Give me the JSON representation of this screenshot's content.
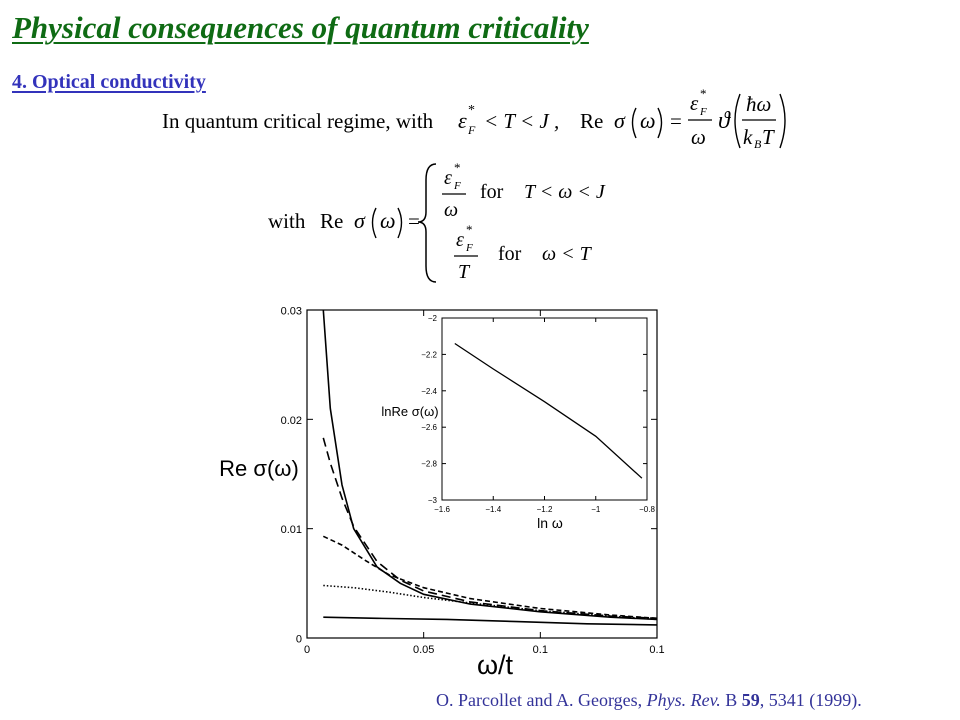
{
  "slide": {
    "title": "Physical consequences of quantum criticality",
    "section": "4. Optical conductivity"
  },
  "equations": {
    "eq1": {
      "lead_text": "In quantum critical regime, with",
      "condition_lhs": "ε",
      "condition_rest": "< T < J ,",
      "re_label": "Re",
      "sigma": "σ",
      "omega": "ω",
      "theta": "ϑ",
      "hbar_omega": "ħω",
      "k_b": "k",
      "T": "T",
      "star": "*",
      "sub_F": "F",
      "sub_B": "B"
    },
    "eq2": {
      "lead_text": "with",
      "re_label": "Re",
      "case1_cond": "for",
      "case1_range": "T < ω < J",
      "case2_cond": "for",
      "case2_range": "ω < T"
    }
  },
  "chart_data": [
    {
      "type": "line",
      "title": "",
      "xlabel": "ω/t",
      "ylabel": "Re σ(ω)",
      "xlim": [
        0,
        0.15
      ],
      "ylim": [
        0,
        0.03
      ],
      "x_ticks": [
        "0",
        "0.05",
        "0.1",
        "0.1"
      ],
      "y_ticks": [
        "0",
        "0.01",
        "0.02",
        "0.03"
      ],
      "grid": false,
      "series": [
        {
          "style": "solid",
          "x": [
            0.007,
            0.01,
            0.015,
            0.02,
            0.03,
            0.04,
            0.05,
            0.07,
            0.1,
            0.13,
            0.15
          ],
          "y": [
            0.03,
            0.021,
            0.014,
            0.01,
            0.0065,
            0.005,
            0.004,
            0.0031,
            0.0024,
            0.0019,
            0.0017
          ]
        },
        {
          "style": "long-dash",
          "x": [
            0.007,
            0.01,
            0.015,
            0.02,
            0.03,
            0.04,
            0.05,
            0.07,
            0.1,
            0.13,
            0.15
          ],
          "y": [
            0.0183,
            0.016,
            0.0128,
            0.0102,
            0.007,
            0.0053,
            0.0043,
            0.0033,
            0.0025,
            0.002,
            0.0018
          ]
        },
        {
          "style": "short-dash",
          "x": [
            0.007,
            0.015,
            0.025,
            0.035,
            0.05,
            0.07,
            0.1,
            0.13,
            0.15
          ],
          "y": [
            0.0093,
            0.0085,
            0.0071,
            0.0058,
            0.0046,
            0.0036,
            0.0027,
            0.0021,
            0.0018
          ]
        },
        {
          "style": "dotted",
          "x": [
            0.007,
            0.02,
            0.035,
            0.05,
            0.07,
            0.1,
            0.13,
            0.15
          ],
          "y": [
            0.0048,
            0.0046,
            0.0042,
            0.0037,
            0.0032,
            0.0025,
            0.002,
            0.0017
          ]
        },
        {
          "style": "solid",
          "x": [
            0.007,
            0.03,
            0.06,
            0.09,
            0.12,
            0.15
          ],
          "y": [
            0.0019,
            0.0018,
            0.0017,
            0.0015,
            0.0013,
            0.0012
          ]
        }
      ]
    },
    {
      "type": "line",
      "title": "",
      "xlabel": "ln ω",
      "ylabel": "lnRe σ(ω)",
      "xlim": [
        -1.6,
        -0.8
      ],
      "ylim": [
        -3,
        -2
      ],
      "x_ticks": [
        "−1.6",
        "−1.4",
        "−1.2",
        "−1",
        "−0.8"
      ],
      "y_ticks": [
        "−3",
        "−2.8",
        "−2.6",
        "−2.4",
        "−2.2",
        "−2"
      ],
      "grid": false,
      "series": [
        {
          "style": "solid",
          "x": [
            -1.55,
            -1.4,
            -1.2,
            -1.0,
            -0.82
          ],
          "y": [
            -2.14,
            -2.28,
            -2.46,
            -2.65,
            -2.88
          ]
        }
      ]
    }
  ],
  "citation": {
    "authors": "O. Parcollet and A. Georges,",
    "journal": "Phys. Rev.",
    "series": "B",
    "volume": "59",
    "rest": ", 5341 (1999)."
  }
}
